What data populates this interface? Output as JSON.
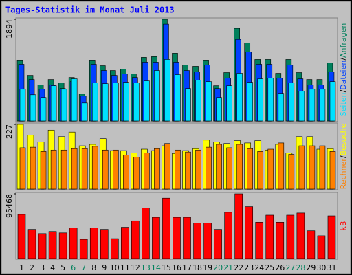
{
  "chart_data": [
    {
      "type": "bar",
      "title": "Tages-Statistik im Monat Juli 2013",
      "title_color": "#0000ff",
      "ylim": [
        0,
        1894
      ],
      "yticks": [
        1894
      ],
      "legend_separator": "/",
      "series": [
        {
          "name": "Anfragen",
          "color": "#00805c",
          "values": [
            1134,
            850,
            670,
            773,
            708,
            811,
            502,
            1134,
            1030,
            940,
            966,
            876,
            1185,
            1198,
            1894,
            1262,
            1043,
            1018,
            1134,
            657,
            902,
            1726,
            1455,
            1146,
            1146,
            889,
            1146,
            902,
            773,
            773,
            1082
          ]
        },
        {
          "name": "Dateien",
          "color": "#0040ff",
          "values": [
            1056,
            773,
            592,
            670,
            605,
            734,
            464,
            1056,
            940,
            850,
            876,
            811,
            1095,
            1095,
            1803,
            1095,
            940,
            914,
            1043,
            605,
            798,
            1520,
            1288,
            1056,
            1056,
            798,
            1043,
            786,
            670,
            670,
            914
          ]
        },
        {
          "name": "Seiten",
          "color": "#00e0ff",
          "values": [
            592,
            489,
            438,
            657,
            592,
            786,
            335,
            708,
            695,
            708,
            721,
            708,
            747,
            940,
            1146,
            863,
            605,
            760,
            734,
            438,
            657,
            889,
            721,
            786,
            798,
            515,
            708,
            554,
            592,
            592,
            734
          ]
        }
      ]
    },
    {
      "type": "bar",
      "ylim": [
        0,
        227
      ],
      "yticks": [
        227
      ],
      "legend_separator": "/",
      "series": [
        {
          "name": "Besuche",
          "color": "#ffff00",
          "values": [
            227,
            190,
            165,
            207,
            184,
            200,
            152,
            157,
            177,
            135,
            135,
            127,
            140,
            135,
            152,
            125,
            135,
            142,
            172,
            165,
            160,
            170,
            162,
            170,
            137,
            157,
            127,
            184,
            184,
            140,
            142
          ]
        },
        {
          "name": "Rechner",
          "color": "#ff8000",
          "values": [
            145,
            147,
            132,
            137,
            137,
            142,
            142,
            150,
            137,
            137,
            120,
            112,
            127,
            142,
            160,
            137,
            130,
            137,
            147,
            157,
            145,
            157,
            142,
            132,
            140,
            162,
            122,
            152,
            152,
            152,
            132
          ]
        }
      ]
    },
    {
      "type": "bar",
      "ylim": [
        0,
        95468
      ],
      "yticks": [
        95468
      ],
      "categories": [
        "1",
        "2",
        "3",
        "4",
        "5",
        "6",
        "7",
        "8",
        "9",
        "10",
        "11",
        "12",
        "13",
        "14",
        "15",
        "16",
        "17",
        "18",
        "19",
        "20",
        "21",
        "22",
        "23",
        "24",
        "25",
        "26",
        "27",
        "28",
        "29",
        "30",
        "31"
      ],
      "category_colors": [
        "#000000",
        "#000000",
        "#000000",
        "#000000",
        "#000000",
        "#00805c",
        "#00805c",
        "#000000",
        "#000000",
        "#000000",
        "#000000",
        "#000000",
        "#00805c",
        "#00805c",
        "#000000",
        "#000000",
        "#000000",
        "#000000",
        "#000000",
        "#00805c",
        "#00805c",
        "#000000",
        "#000000",
        "#000000",
        "#000000",
        "#000000",
        "#00805c",
        "#00805c",
        "#000000",
        "#000000",
        "#000000"
      ],
      "series": [
        {
          "name": "kB",
          "color": "#ff0000",
          "values": [
            65040,
            43010,
            36720,
            39860,
            37760,
            45110,
            28320,
            45110,
            43010,
            29370,
            46160,
            55600,
            74480,
            60840,
            89170,
            60840,
            60840,
            52450,
            52450,
            43010,
            68190,
            95468,
            76580,
            53500,
            63990,
            53500,
            63990,
            67140,
            40910,
            33570,
            62940
          ]
        }
      ]
    }
  ]
}
